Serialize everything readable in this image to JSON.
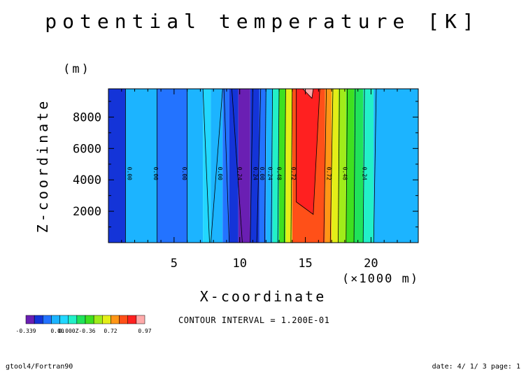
{
  "chart_data": {
    "type": "contour",
    "title": "potential temperature [K]",
    "xlabel": "X-coordinate",
    "xunit": "(×1000 m)",
    "ylabel": "Z-coordinate",
    "yunit": "(m)",
    "xlim": [
      0.0,
      23.6
    ],
    "ylim": [
      0,
      9800
    ],
    "xticks": [
      5,
      10,
      15,
      20
    ],
    "yticks": [
      2000,
      4000,
      6000,
      8000
    ],
    "contour_interval_text": "CONTOUR INTERVAL = 1.200E-01",
    "color_levels": [
      "#6a1fb3",
      "#1434d8",
      "#2373ff",
      "#1cb4ff",
      "#22d7ff",
      "#22f0c8",
      "#20e35a",
      "#3fe020",
      "#a0ec1a",
      "#e4ee18",
      "#ff9616",
      "#ff5018",
      "#ff2020",
      "#ffaaaa"
    ],
    "colorbar_labels": [
      "-0.339",
      "0.00",
      "0.000Z-0.36",
      "0.72",
      "0.97"
    ],
    "bands": [
      {
        "x0": 0.0,
        "x1": 1.3,
        "level": 1
      },
      {
        "x0": 1.3,
        "x1": 3.7,
        "level": 3
      },
      {
        "x0": 3.7,
        "x1": 6.0,
        "level": 2
      },
      {
        "x0": 6.0,
        "x1": 7.2,
        "level": 3
      },
      {
        "x0": 7.2,
        "x1": 7.8,
        "level": 4
      },
      {
        "x0": 7.8,
        "x1": 8.7,
        "level": 3
      },
      {
        "x0": 8.7,
        "x1": 9.2,
        "level": 2
      },
      {
        "x0": 9.2,
        "x1": 9.9,
        "level": 1
      },
      {
        "x0": 9.9,
        "x1": 10.8,
        "level": 0
      },
      {
        "x0": 10.8,
        "x1": 11.5,
        "level": 1
      },
      {
        "x0": 11.5,
        "x1": 12.0,
        "level": 2
      },
      {
        "x0": 12.0,
        "x1": 12.5,
        "level": 3
      },
      {
        "x0": 12.5,
        "x1": 13.0,
        "level": 5
      },
      {
        "x0": 13.0,
        "x1": 13.5,
        "level": 7
      },
      {
        "x0": 13.5,
        "x1": 14.0,
        "level": 9
      },
      {
        "x0": 14.0,
        "x1": 16.5,
        "level": 11
      },
      {
        "x0": 16.5,
        "x1": 17.0,
        "level": 10
      },
      {
        "x0": 17.0,
        "x1": 17.5,
        "level": 9
      },
      {
        "x0": 17.5,
        "x1": 18.1,
        "level": 8
      },
      {
        "x0": 18.1,
        "x1": 18.7,
        "level": 7
      },
      {
        "x0": 18.7,
        "x1": 19.4,
        "level": 6
      },
      {
        "x0": 19.4,
        "x1": 20.2,
        "level": 5
      },
      {
        "x0": 20.2,
        "x1": 23.6,
        "level": 3
      }
    ],
    "contour_lines": [
      {
        "x_bottom": 1.3,
        "x_top": 1.3
      },
      {
        "x_bottom": 3.7,
        "x_top": 3.7
      },
      {
        "x_bottom": 6.0,
        "x_top": 6.0
      },
      {
        "x_bottom": 7.7,
        "x_top": 7.2
      },
      {
        "x_bottom": 7.8,
        "x_top": 8.7
      },
      {
        "x_bottom": 9.2,
        "x_top": 8.8
      },
      {
        "x_bottom": 10.2,
        "x_top": 9.4
      },
      {
        "x_bottom": 10.8,
        "x_top": 11.0
      },
      {
        "x_bottom": 11.3,
        "x_top": 11.6
      },
      {
        "x_bottom": 11.9,
        "x_top": 12.0
      },
      {
        "x_bottom": 12.4,
        "x_top": 12.5
      },
      {
        "x_bottom": 12.9,
        "x_top": 13.0
      },
      {
        "x_bottom": 13.4,
        "x_top": 13.5
      },
      {
        "x_bottom": 13.9,
        "x_top": 14.0
      },
      {
        "x_bottom": 16.4,
        "x_top": 16.6
      },
      {
        "x_bottom": 16.9,
        "x_top": 17.1
      },
      {
        "x_bottom": 17.5,
        "x_top": 17.6
      },
      {
        "x_bottom": 18.1,
        "x_top": 18.2
      },
      {
        "x_bottom": 18.7,
        "x_top": 18.8
      },
      {
        "x_bottom": 19.4,
        "x_top": 19.5
      },
      {
        "x_bottom": 20.2,
        "x_top": 20.4
      }
    ],
    "core_region": {
      "points": [
        [
          14.3,
          2600
        ],
        [
          15.6,
          1800
        ],
        [
          16.1,
          9800
        ],
        [
          14.3,
          9800
        ]
      ],
      "level": 12
    },
    "top_patch": {
      "points": [
        [
          14.8,
          9800
        ],
        [
          15.6,
          9800
        ],
        [
          15.5,
          9200
        ]
      ],
      "level": 13
    },
    "contour_labels": [
      {
        "text": "0.00",
        "x": 1.3,
        "y": 4400
      },
      {
        "text": "0.00",
        "x": 3.3,
        "y": 4400
      },
      {
        "text": "0.00",
        "x": 5.5,
        "y": 4400
      },
      {
        "text": "0.00",
        "x": 8.2,
        "y": 4400
      },
      {
        "text": "0.24",
        "x": 9.7,
        "y": 4400
      },
      {
        "text": "0.24",
        "x": 10.9,
        "y": 4400
      },
      {
        "text": "0.00",
        "x": 11.4,
        "y": 4400
      },
      {
        "text": "0.24",
        "x": 12.0,
        "y": 4400
      },
      {
        "text": "0.48",
        "x": 12.7,
        "y": 4400
      },
      {
        "text": "0.72",
        "x": 13.8,
        "y": 4400
      },
      {
        "text": "0.72",
        "x": 16.5,
        "y": 4400
      },
      {
        "text": "0.48",
        "x": 17.7,
        "y": 4400
      },
      {
        "text": "0.24",
        "x": 19.2,
        "y": 4400
      }
    ]
  },
  "footer": {
    "left_text": "gtool4/Fortran90",
    "right_text": "date: 4/ 1/ 3 page: 1"
  }
}
